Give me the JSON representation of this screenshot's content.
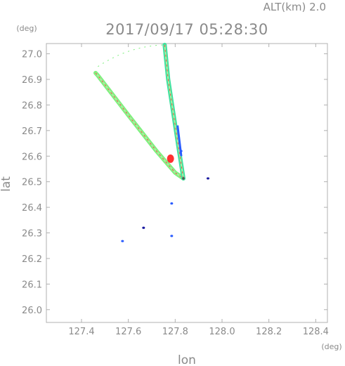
{
  "header": {
    "altitude_label": "ALT(km) 2.0",
    "timestamp": "2017/09/17 05:28:30"
  },
  "chart_data": {
    "type": "scatter",
    "title": "2017/09/17 05:28:30",
    "xlabel": "lon",
    "ylabel": "lat",
    "x_unit": "(deg)",
    "y_unit": "(deg)",
    "xlim": [
      127.25,
      128.45
    ],
    "ylim": [
      25.95,
      27.04
    ],
    "x_ticks": [
      "127.4",
      "127.6",
      "127.8",
      "128.0",
      "128.2",
      "128.4"
    ],
    "y_ticks": [
      "26.0",
      "26.1",
      "26.2",
      "26.3",
      "26.4",
      "26.5",
      "26.6",
      "26.7",
      "26.8",
      "26.9",
      "27.0"
    ],
    "grid": false,
    "colors": {
      "frame": "#b0b0b0",
      "text": "#8a8a8a",
      "green": "#7ef07e",
      "light_green": "#a8f0a0",
      "cyan_green": "#40e0a0",
      "blue": "#2a5cff",
      "red": "#ff3030",
      "navy": "#1a1aa0"
    },
    "radar_site": {
      "lon": 127.835,
      "lat": 26.513
    },
    "beams": [
      {
        "name": "west-beam",
        "points": [
          [
            127.46,
            26.925
          ],
          [
            127.47,
            26.915
          ],
          [
            127.6,
            26.76
          ],
          [
            127.72,
            26.62
          ],
          [
            127.8,
            26.535
          ],
          [
            127.835,
            26.513
          ]
        ],
        "color": "#7ef07e"
      },
      {
        "name": "north-beam",
        "points": [
          [
            127.755,
            27.035
          ],
          [
            127.77,
            26.9
          ],
          [
            127.795,
            26.75
          ],
          [
            127.815,
            26.63
          ],
          [
            127.835,
            26.513
          ]
        ],
        "color": "#40e0a0"
      }
    ],
    "echo_patches": [
      {
        "lon": 127.78,
        "lat": 26.59,
        "color": "#ff3030"
      },
      {
        "lon": 127.825,
        "lat": 26.62,
        "color": "#2a5cff"
      },
      {
        "lon": 127.94,
        "lat": 26.513,
        "color": "#1a1aa0"
      },
      {
        "lon": 127.785,
        "lat": 26.415,
        "color": "#2a5cff"
      },
      {
        "lon": 127.665,
        "lat": 26.32,
        "color": "#1a1aa0"
      },
      {
        "lon": 127.785,
        "lat": 26.288,
        "color": "#2a5cff"
      },
      {
        "lon": 127.575,
        "lat": 26.268,
        "color": "#2a5cff"
      }
    ]
  }
}
